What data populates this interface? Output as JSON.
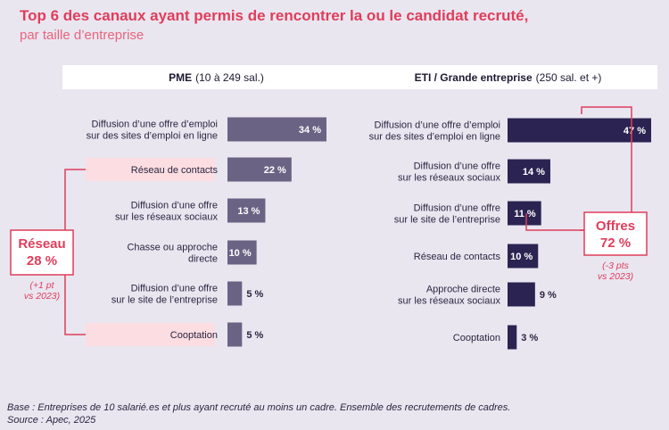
{
  "header": {
    "title": "Top 6 des canaux ayant permis de rencontrer la ou le candidat recruté,",
    "subtitle": "par taille d’entreprise"
  },
  "panels": {
    "left": {
      "title_bold": "PME",
      "title_rest": "(10 à 249 sal.)"
    },
    "right": {
      "title_bold": "ETI / Grande entreprise",
      "title_rest": "(250 sal. et +)"
    }
  },
  "callouts": {
    "left": {
      "title": "Réseau",
      "value": "28 %",
      "note_line1": "(+1 pt",
      "note_line2": "vs 2023)"
    },
    "right": {
      "title": "Offres",
      "value": "72 %",
      "note_line1": "(-3 pts",
      "note_line2": "vs 2023)"
    }
  },
  "footer": {
    "base": "Base : Entreprises de 10 salarié.es et plus ayant recruté au moins un cadre. Ensemble des recrutements de cadres.",
    "source": "Source : Apec, 2025"
  },
  "colors": {
    "left_bar": "#6b6384",
    "right_bar": "#2b2452",
    "accent": "#e03d5b",
    "highlight": "#fcdde1"
  },
  "chart_data": [
    {
      "type": "bar",
      "orientation": "horizontal",
      "panel": "left",
      "categories": [
        [
          "Diffusion d’une offre d’emploi",
          "sur des sites d’emploi en ligne"
        ],
        [
          "Réseau de contacts"
        ],
        [
          "Diffusion d’une offre",
          "sur les réseaux sociaux"
        ],
        [
          "Chasse ou approche",
          "directe"
        ],
        [
          "Diffusion d’une offre",
          "sur le site de l’entreprise"
        ],
        [
          "Cooptation"
        ]
      ],
      "values": [
        34,
        22,
        13,
        10,
        5,
        5
      ],
      "labels": [
        "34 %",
        "22 %",
        "13 %",
        "10 %",
        "5 %",
        "5 %"
      ],
      "highlighted": [
        false,
        true,
        false,
        false,
        false,
        true
      ],
      "unit": "%"
    },
    {
      "type": "bar",
      "orientation": "horizontal",
      "panel": "right",
      "categories": [
        [
          "Diffusion d’une offre d’emploi",
          "sur des sites d’emploi en ligne"
        ],
        [
          "Diffusion d’une offre",
          "sur les réseaux sociaux"
        ],
        [
          "Diffusion d’une offre",
          "sur le site de l’entreprise"
        ],
        [
          "Réseau de contacts"
        ],
        [
          "Approche directe",
          "sur les réseaux sociaux"
        ],
        [
          "Cooptation"
        ]
      ],
      "values": [
        47,
        14,
        11,
        10,
        9,
        3
      ],
      "labels": [
        "47 %",
        "14 %",
        "11 %",
        "10 %",
        "9 %",
        "3 %"
      ],
      "highlighted": [
        false,
        false,
        false,
        false,
        false,
        false
      ],
      "unit": "%"
    }
  ]
}
